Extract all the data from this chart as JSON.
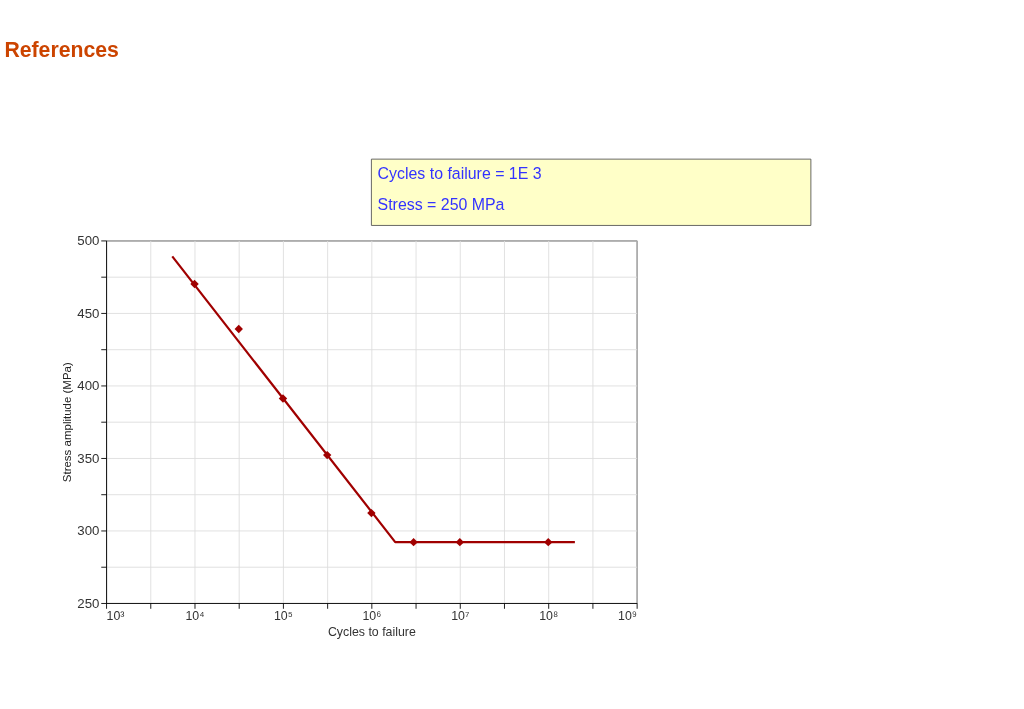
{
  "chart_data": {
    "type": "scatter",
    "title": "References",
    "xlabel": "Cycles to failure",
    "ylabel": "Stress amplitude (MPa)",
    "annotations": [
      "Cycles to failure = 1E 3",
      "Stress = 250 MPa"
    ],
    "log": "x",
    "xlim": [
      1000,
      1000000000
    ],
    "ylim": [
      250,
      500
    ],
    "xticks": [
      {
        "value": 1000,
        "label": "10³"
      },
      {
        "value": 3162,
        "label": null
      },
      {
        "value": 10000,
        "label": "10⁴"
      },
      {
        "value": 31623,
        "label": null
      },
      {
        "value": 100000,
        "label": "10⁵"
      },
      {
        "value": 316228,
        "label": null
      },
      {
        "value": 1000000,
        "label": "10⁶"
      },
      {
        "value": 3162278,
        "label": null
      },
      {
        "value": 10000000,
        "label": "10⁷"
      },
      {
        "value": 31622777,
        "label": null
      },
      {
        "value": 100000000,
        "label": "10⁸"
      },
      {
        "value": 316227766,
        "label": null
      },
      {
        "value": 1000000000,
        "label": "10⁹"
      }
    ],
    "yticks": [
      250,
      {
        "value": 275,
        "label": null
      },
      300,
      {
        "value": 325,
        "label": null
      },
      350,
      {
        "value": 375,
        "label": null
      },
      400,
      {
        "value": 425,
        "label": null
      },
      450,
      {
        "value": 475,
        "label": null
      },
      500
    ],
    "grid": true,
    "marker": "diamond",
    "series": [
      {
        "color": "#a00000",
        "x": [
          10000,
          31623,
          100000,
          316228,
          1000000,
          3000000,
          10000000,
          100000000
        ],
        "values": [
          470,
          439,
          391,
          352,
          312,
          292,
          292,
          292
        ]
      },
      {
        "type": "line",
        "color": "#a00000",
        "line_style": "solid",
        "marker": "none",
        "x": [
          5600,
          1860000,
          200000000
        ],
        "values": [
          489,
          292,
          292
        ]
      }
    ]
  }
}
